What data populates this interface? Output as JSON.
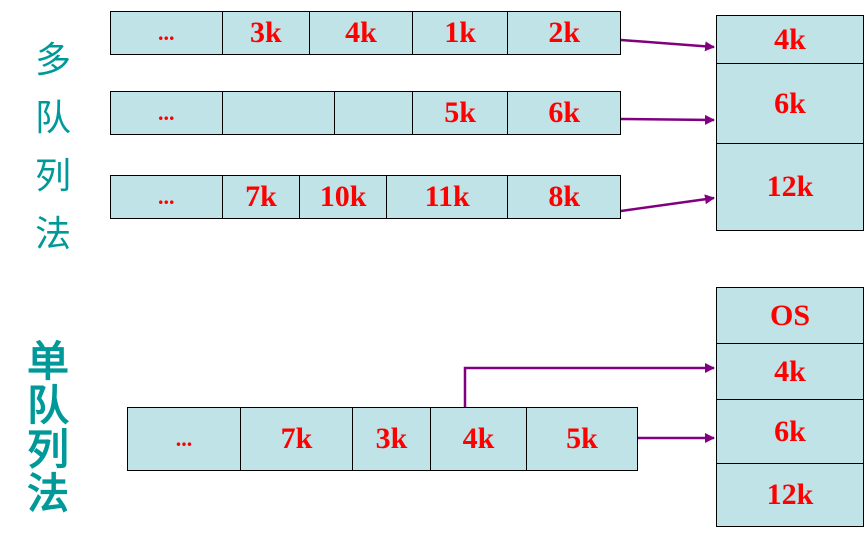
{
  "labels": {
    "multi": [
      "多",
      "队",
      "列",
      "法"
    ],
    "single": [
      "单",
      "队",
      "列",
      "法"
    ]
  },
  "multi_queues": [
    [
      "...",
      "3k",
      "4k",
      "1k",
      "2k"
    ],
    [
      "...",
      "",
      "",
      "5k",
      "6k"
    ],
    [
      "...",
      "7k",
      "10k",
      "11k",
      "8k"
    ]
  ],
  "multi_memory": [
    "4k",
    "6k",
    "12k"
  ],
  "single_queue": [
    "...",
    "7k",
    "3k",
    "4k",
    "5k"
  ],
  "single_memory": [
    "OS",
    "4k",
    "6k",
    "12k"
  ],
  "colors": {
    "cell_fill": "#bfe3e6",
    "text": "#ff0000",
    "label": "#009999",
    "arrow": "#800080"
  }
}
